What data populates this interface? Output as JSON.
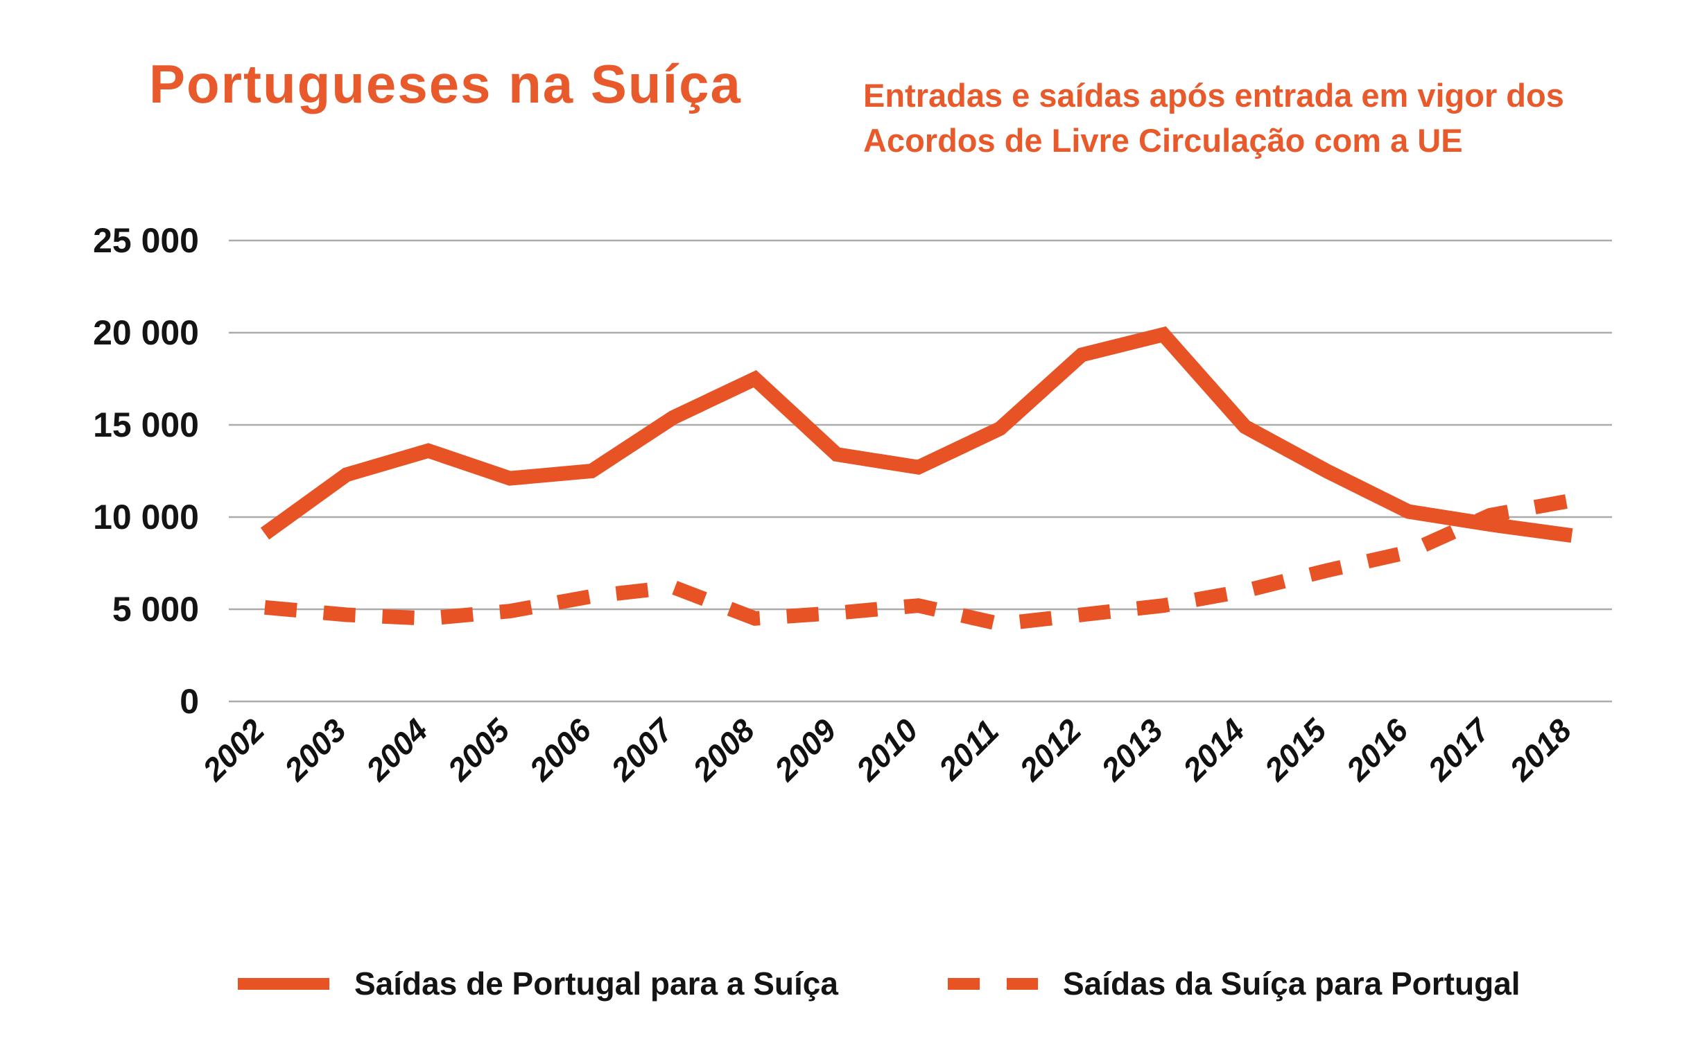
{
  "header": {
    "title": "Portugueses na Suíça",
    "subtitle": "Entradas e saídas após entrada em vigor dos Acordos de Livre Circulação com a UE",
    "subtitle_line1": "Entradas e saídas após entrada em vigor dos",
    "subtitle_line2": "Acordos de Livre Circulação com a UE"
  },
  "colors": {
    "accent": "#E75325",
    "title": "#E85A2B",
    "grid": "#ABABAB",
    "text": "#141414"
  },
  "chart_data": {
    "type": "line",
    "categories": [
      "2002",
      "2003",
      "2004",
      "2005",
      "2006",
      "2007",
      "2008",
      "2009",
      "2010",
      "2011",
      "2012",
      "2013",
      "2014",
      "2015",
      "2016",
      "2017",
      "2018"
    ],
    "series": [
      {
        "name": "Saídas de Portugal para a Suíça",
        "style": "solid",
        "color": "#E75325",
        "values": [
          9100,
          12300,
          13600,
          12100,
          12500,
          15400,
          17500,
          13400,
          12700,
          14800,
          18800,
          19900,
          14900,
          12500,
          10300,
          9600,
          9000
        ]
      },
      {
        "name": "Saídas da Suíça para Portugal",
        "style": "dashed",
        "color": "#E75325",
        "values": [
          5100,
          4700,
          4500,
          4900,
          5700,
          6200,
          4500,
          4800,
          5200,
          4200,
          4700,
          5200,
          6000,
          7100,
          8100,
          10100,
          10900
        ]
      }
    ],
    "ylim": [
      0,
      25000
    ],
    "yticks": [
      {
        "value": 0,
        "label": "0"
      },
      {
        "value": 5000,
        "label": "5 000"
      },
      {
        "value": 10000,
        "label": "10 000"
      },
      {
        "value": 15000,
        "label": "15 000"
      },
      {
        "value": 20000,
        "label": "20 000"
      },
      {
        "value": 25000,
        "label": "25 000"
      }
    ],
    "xlabel": "",
    "ylabel": "",
    "grid": true,
    "legend_position": "bottom"
  }
}
